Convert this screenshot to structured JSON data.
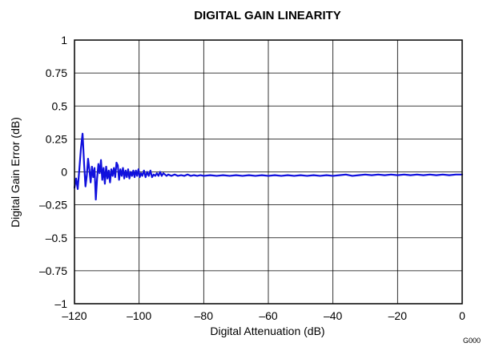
{
  "chart_data": {
    "type": "line",
    "title": "DIGITAL GAIN LINEARITY",
    "xlabel": "Digital Attenuation (dB)",
    "ylabel": "Digital Gain Error (dB)",
    "xlim": [
      -120,
      0
    ],
    "ylim": [
      -1,
      1
    ],
    "x_ticks": [
      -120,
      -100,
      -80,
      -60,
      -40,
      -20,
      0
    ],
    "y_ticks": [
      1,
      0.75,
      0.5,
      0.25,
      0,
      -0.25,
      -0.5,
      -0.75,
      -1
    ],
    "x_tick_labels": [
      "–120",
      "–100",
      "–80",
      "–60",
      "–40",
      "–20",
      "0"
    ],
    "y_tick_labels": [
      "1",
      "0.75",
      "0.5",
      "0.25",
      "0",
      "–0.25",
      "–0.5",
      "–0.75",
      "–1"
    ],
    "grid": true,
    "figure_code": "G000",
    "series": [
      {
        "color": "#1010dd",
        "points": [
          [
            -120,
            -0.12
          ],
          [
            -119.5,
            -0.05
          ],
          [
            -119,
            -0.13
          ],
          [
            -118.5,
            0.02
          ],
          [
            -118,
            0.18
          ],
          [
            -117.5,
            0.29
          ],
          [
            -117,
            0.05
          ],
          [
            -116.6,
            -0.11
          ],
          [
            -116.2,
            -0.03
          ],
          [
            -115.8,
            0.1
          ],
          [
            -115.4,
            0.02
          ],
          [
            -115,
            -0.08
          ],
          [
            -114.6,
            0.04
          ],
          [
            -114.2,
            -0.04
          ],
          [
            -113.8,
            0.03
          ],
          [
            -113.4,
            -0.21
          ],
          [
            -113,
            -0.05
          ],
          [
            -112.6,
            0.06
          ],
          [
            -112.2,
            -0.01
          ],
          [
            -111.8,
            0.09
          ],
          [
            -111.4,
            -0.06
          ],
          [
            -111,
            0.03
          ],
          [
            -110.6,
            -0.09
          ],
          [
            -110.2,
            0.04
          ],
          [
            -109.8,
            -0.05
          ],
          [
            -109.4,
            0.01
          ],
          [
            -109,
            -0.08
          ],
          [
            -108.6,
            0.02
          ],
          [
            -108.2,
            -0.03
          ],
          [
            -107.8,
            0.03
          ],
          [
            -107.4,
            -0.04
          ],
          [
            -107,
            0.07
          ],
          [
            -106.6,
            0.05
          ],
          [
            -106.2,
            -0.06
          ],
          [
            -105.8,
            0.02
          ],
          [
            -105.4,
            -0.03
          ],
          [
            -105,
            0.03
          ],
          [
            -104.6,
            -0.05
          ],
          [
            -104.2,
            0.01
          ],
          [
            -103.8,
            -0.04
          ],
          [
            -103.4,
            0.02
          ],
          [
            -103,
            -0.05
          ],
          [
            -102.6,
            0.0
          ],
          [
            -102.2,
            -0.03
          ],
          [
            -101.8,
            0.01
          ],
          [
            -101.4,
            -0.04
          ],
          [
            -101,
            0.01
          ],
          [
            -100.6,
            -0.03
          ],
          [
            -100.2,
            0.02
          ],
          [
            -99.8,
            -0.04
          ],
          [
            -99.4,
            -0.01
          ],
          [
            -99,
            -0.03
          ],
          [
            -98.5,
            0.01
          ],
          [
            -98,
            -0.04
          ],
          [
            -97.5,
            0.0
          ],
          [
            -97,
            -0.03
          ],
          [
            -96.5,
            0.01
          ],
          [
            -96,
            -0.04
          ],
          [
            -95.5,
            -0.02
          ],
          [
            -95,
            -0.03
          ],
          [
            -94.5,
            -0.01
          ],
          [
            -94,
            -0.03
          ],
          [
            -93.5,
            0.0
          ],
          [
            -93,
            -0.03
          ],
          [
            -92.5,
            -0.01
          ],
          [
            -92,
            -0.02
          ],
          [
            -91.5,
            -0.03
          ],
          [
            -91,
            -0.02
          ],
          [
            -90,
            -0.03
          ],
          [
            -89,
            -0.02
          ],
          [
            -88,
            -0.03
          ],
          [
            -87,
            -0.025
          ],
          [
            -86,
            -0.03
          ],
          [
            -85,
            -0.02
          ],
          [
            -84,
            -0.03
          ],
          [
            -83,
            -0.025
          ],
          [
            -82,
            -0.03
          ],
          [
            -81,
            -0.025
          ],
          [
            -80,
            -0.03
          ],
          [
            -78,
            -0.025
          ],
          [
            -76,
            -0.03
          ],
          [
            -74,
            -0.025
          ],
          [
            -72,
            -0.03
          ],
          [
            -70,
            -0.025
          ],
          [
            -68,
            -0.03
          ],
          [
            -66,
            -0.025
          ],
          [
            -64,
            -0.03
          ],
          [
            -62,
            -0.025
          ],
          [
            -60,
            -0.03
          ],
          [
            -58,
            -0.025
          ],
          [
            -56,
            -0.03
          ],
          [
            -54,
            -0.025
          ],
          [
            -52,
            -0.03
          ],
          [
            -50,
            -0.025
          ],
          [
            -48,
            -0.03
          ],
          [
            -46,
            -0.025
          ],
          [
            -44,
            -0.03
          ],
          [
            -42,
            -0.025
          ],
          [
            -40,
            -0.03
          ],
          [
            -38,
            -0.025
          ],
          [
            -36,
            -0.02
          ],
          [
            -34,
            -0.03
          ],
          [
            -32,
            -0.025
          ],
          [
            -30,
            -0.02
          ],
          [
            -28,
            -0.025
          ],
          [
            -26,
            -0.02
          ],
          [
            -24,
            -0.025
          ],
          [
            -22,
            -0.02
          ],
          [
            -20,
            -0.025
          ],
          [
            -18,
            -0.02
          ],
          [
            -16,
            -0.025
          ],
          [
            -14,
            -0.02
          ],
          [
            -12,
            -0.025
          ],
          [
            -10,
            -0.02
          ],
          [
            -8,
            -0.025
          ],
          [
            -6,
            -0.02
          ],
          [
            -4,
            -0.025
          ],
          [
            -2,
            -0.02
          ],
          [
            0,
            -0.02
          ]
        ]
      }
    ]
  }
}
